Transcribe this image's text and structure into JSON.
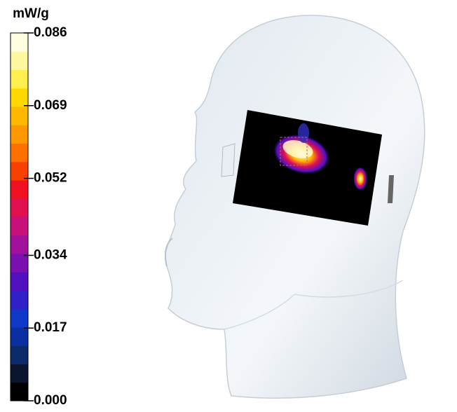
{
  "colorbar": {
    "unit": "mW/g",
    "range": [
      0,
      0.086
    ],
    "ticks": [
      {
        "value": 0,
        "label": "0.000"
      },
      {
        "value": 0.017,
        "label": "0.017"
      },
      {
        "value": 0.034,
        "label": "0.034"
      },
      {
        "value": 0.052,
        "label": "0.052"
      },
      {
        "value": 0.069,
        "label": "0.069"
      },
      {
        "value": 0.086,
        "label": "0.086"
      }
    ],
    "colors": [
      "#000000",
      "#0a1530",
      "#0c2a6a",
      "#0a2fa0",
      "#1038c8",
      "#3020c8",
      "#5010c0",
      "#7a10b0",
      "#a0109a",
      "#c8107a",
      "#e01050",
      "#f01020",
      "#f84000",
      "#ff7000",
      "#ff9800",
      "#ffb800",
      "#ffd800",
      "#ffee50",
      "#fff6a0",
      "#fffde0"
    ]
  }
}
